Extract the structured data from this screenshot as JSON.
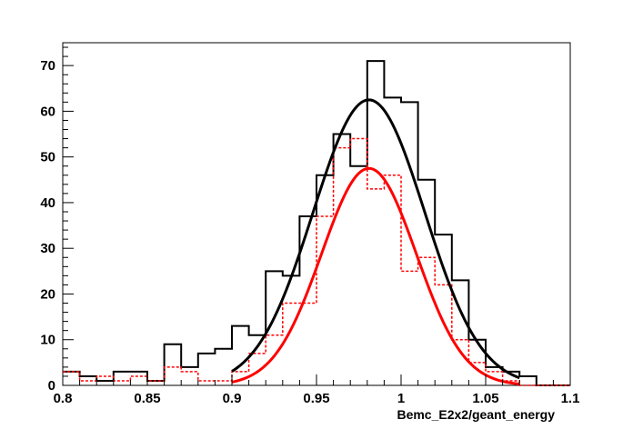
{
  "chart_data": {
    "type": "histogram",
    "xlabel": "Bemc_E2x2/geant_energy",
    "ylabel": "",
    "title": "",
    "xlim": [
      0.8,
      1.1
    ],
    "ylim": [
      0,
      75
    ],
    "x_ticks": [
      "0.8",
      "0.85",
      "0.9",
      "0.95",
      "1",
      "1.05",
      "1.1"
    ],
    "y_ticks": [
      "0",
      "10",
      "20",
      "30",
      "40",
      "50",
      "60",
      "70"
    ],
    "bin_width": 0.01,
    "colors": {
      "black": "#000000",
      "red": "#ff0000"
    },
    "series": [
      {
        "style": "histogram-solid",
        "color": "#000000",
        "bin_edges_start": 0.8,
        "counts": [
          3,
          2,
          1,
          3,
          3,
          1,
          9,
          4,
          7,
          8,
          13,
          11,
          25,
          24,
          37,
          46,
          55,
          48,
          71,
          63,
          62,
          45,
          33,
          23,
          10,
          4,
          3,
          2,
          0,
          0
        ]
      },
      {
        "style": "histogram-dashed",
        "color": "#ff0000",
        "bin_edges_start": 0.8,
        "counts": [
          3,
          1,
          2,
          1,
          2,
          1,
          4,
          3,
          1,
          1,
          3,
          7,
          11,
          18,
          18,
          37,
          52,
          54,
          43,
          46,
          25,
          28,
          22,
          10,
          5,
          3,
          1,
          0,
          0,
          0
        ]
      },
      {
        "style": "gaussian-fit",
        "color": "#000000",
        "amplitude": 62.5,
        "mean": 0.981,
        "sigma": 0.033,
        "range": [
          0.9,
          1.07
        ]
      },
      {
        "style": "gaussian-fit",
        "color": "#ff0000",
        "amplitude": 47.5,
        "mean": 0.981,
        "sigma": 0.028,
        "range": [
          0.9,
          1.07
        ]
      }
    ]
  }
}
